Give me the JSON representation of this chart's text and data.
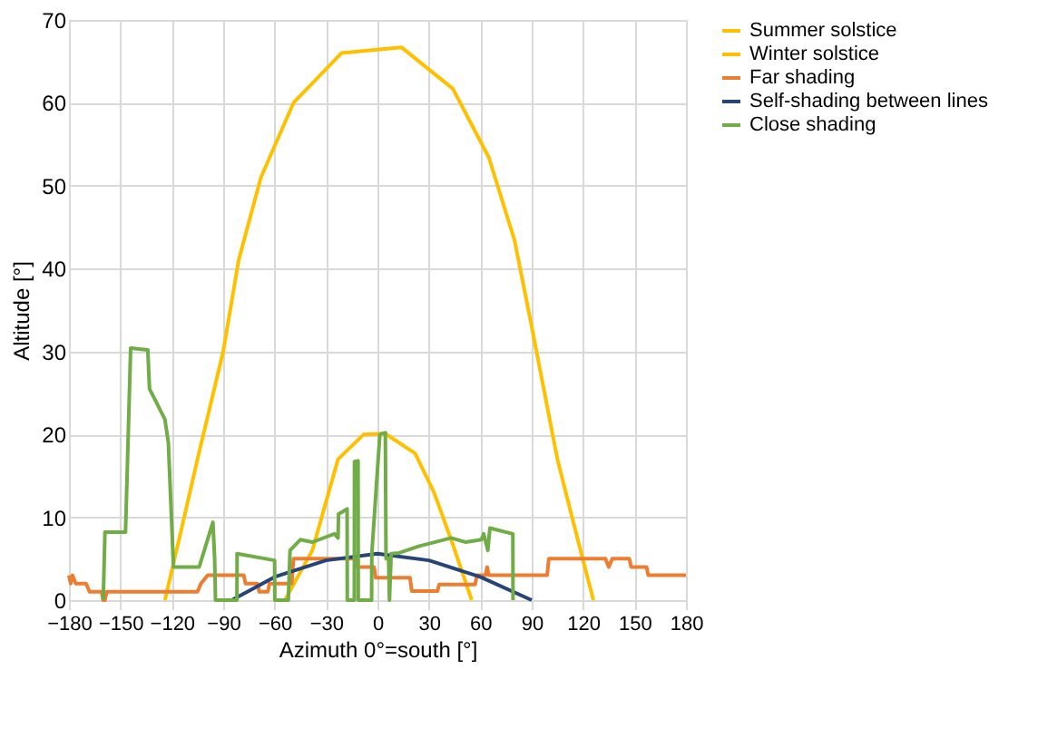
{
  "chart_data": {
    "type": "line",
    "xlabel": "Azimuth 0°=south [°]",
    "ylabel": "Altitude [°]",
    "xlim": [
      -180,
      180
    ],
    "xticks": [
      -180,
      -150,
      -120,
      -90,
      -60,
      -30,
      0,
      30,
      60,
      90,
      120,
      150,
      180
    ],
    "ylim": [
      0,
      70
    ],
    "yticks": [
      0,
      10,
      20,
      30,
      40,
      50,
      60,
      70
    ],
    "grid": true,
    "legend": "right",
    "marker": "none",
    "line_style": "solid",
    "series": [
      {
        "name": "Summer solstice",
        "color": "#ffc000",
        "x": [
          -124,
          -115,
          -105,
          -90,
          -81,
          -68,
          -49,
          -21,
          14,
          44,
          65,
          80,
          90,
          105,
          116,
          126
        ],
        "values": [
          0,
          8,
          17,
          30,
          41,
          51,
          60,
          66,
          66.7,
          61.7,
          53.4,
          43.4,
          33,
          17,
          8,
          0
        ]
      },
      {
        "name": "Winter solstice",
        "color": "#ffc000",
        "x": [
          -54,
          -38,
          -23,
          -8,
          4.5,
          22,
          33,
          44,
          55
        ],
        "values": [
          0,
          6,
          17,
          20,
          20.1,
          17.7,
          13,
          6.7,
          0
        ]
      },
      {
        "name": "Far shading",
        "color": "#ed7d31",
        "x": [
          -180,
          -179,
          -178,
          -176,
          -170,
          -168,
          -161,
          -160,
          -159,
          -158,
          -105,
          -103,
          -99,
          -78,
          -77,
          -70,
          -69,
          -64,
          -63,
          -50,
          -49,
          -13,
          -12,
          -2,
          -1,
          19,
          20,
          35,
          36,
          57,
          58,
          63,
          64,
          65,
          99,
          100,
          133,
          135,
          137,
          147,
          148,
          157,
          158,
          180
        ],
        "values": [
          3,
          2,
          3,
          2,
          2,
          1,
          1,
          0,
          0,
          1,
          1,
          2,
          3,
          3,
          2,
          2,
          1,
          1,
          2,
          2,
          5,
          5,
          4,
          4,
          2.7,
          2.7,
          1.1,
          1.1,
          1.9,
          1.9,
          3,
          3,
          4,
          3,
          3,
          5,
          5,
          4,
          5,
          5,
          4,
          4,
          3,
          3
        ]
      },
      {
        "name": "Self-shading between lines",
        "color": "#264478",
        "x": [
          -85,
          -60,
          -30,
          0,
          30,
          60,
          90
        ],
        "values": [
          0,
          2.8,
          4.8,
          5.6,
          4.8,
          2.8,
          0
        ]
      },
      {
        "name": "Close shading",
        "color": "#70ad47",
        "x": [
          -160,
          -159,
          -147,
          -144,
          -134,
          -133,
          -124,
          -122,
          -119,
          -104,
          -96,
          -95,
          -94.5,
          -82,
          -81.9,
          -60,
          -59.9,
          -52,
          -51,
          -45,
          -38,
          -25,
          -23,
          -22.7,
          -17.7,
          -17.6,
          -13.5,
          -13.4,
          -11.3,
          -11.2,
          -3.4,
          -3.3,
          1.4,
          4.6,
          5,
          6.5,
          7,
          8,
          12.6,
          24,
          43,
          51.5,
          60.7,
          62,
          64.4,
          65.6,
          79,
          79.1
        ],
        "values": [
          0,
          8.2,
          8.2,
          30.4,
          30.2,
          25.5,
          21.8,
          19,
          4,
          4,
          9.4,
          5,
          0,
          0,
          5.6,
          4.8,
          0,
          0,
          6,
          7.3,
          7,
          8,
          7.5,
          10.4,
          11,
          0,
          0,
          16.7,
          16.8,
          0,
          0,
          5.6,
          20,
          20.2,
          5,
          5,
          0,
          5.6,
          5.7,
          6.5,
          7.5,
          7,
          7.3,
          8,
          6,
          8.7,
          8,
          0
        ]
      }
    ]
  }
}
